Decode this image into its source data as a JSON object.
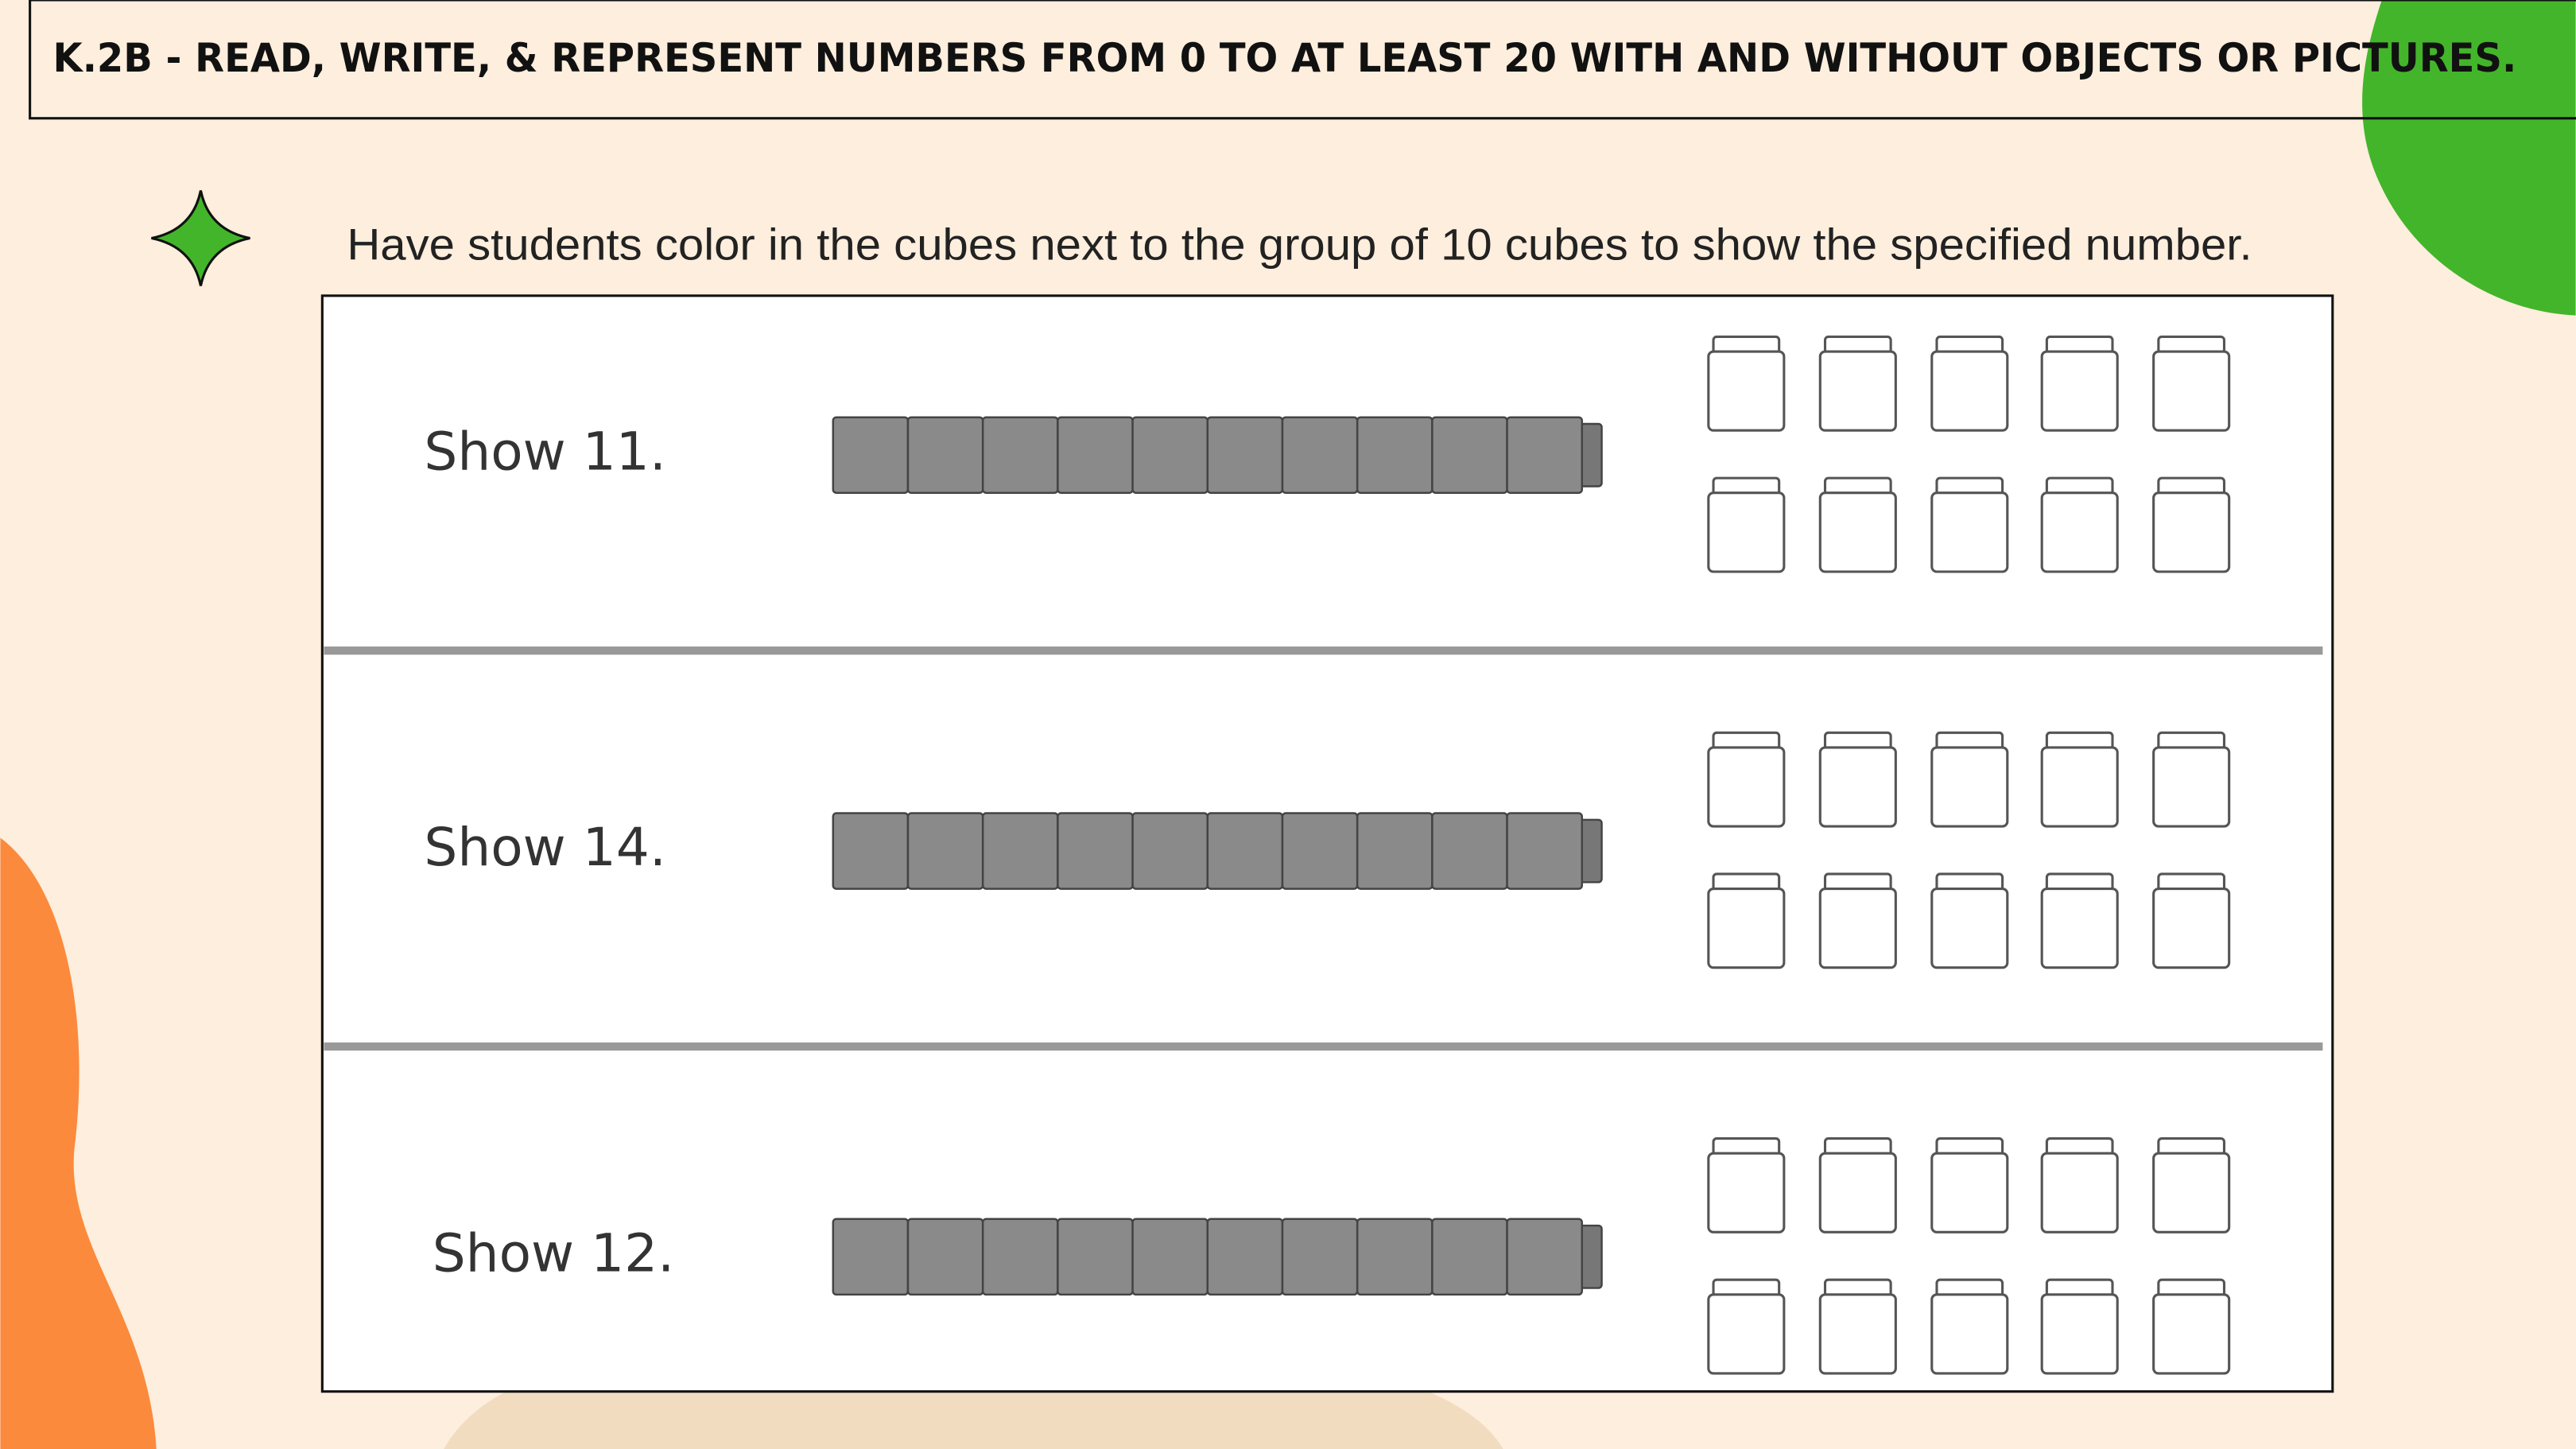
{
  "header": {
    "title": "K.2B - READ, WRITE, & REPRESENT NUMBERS FROM 0 TO AT LEAST 20 WITH AND WITHOUT OBJECTS OR PICTURES."
  },
  "instruction": "Have students color in the cubes next to the group of 10 cubes to show the specified number.",
  "rows": [
    {
      "label": "Show 11."
    },
    {
      "label": "Show 14."
    },
    {
      "label": "Show 12."
    }
  ]
}
